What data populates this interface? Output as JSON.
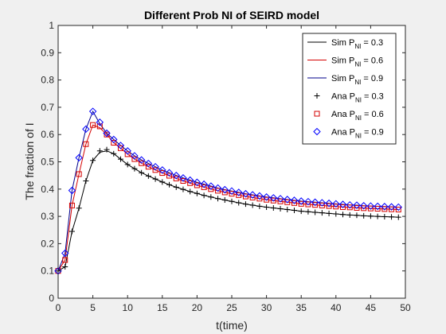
{
  "chart_data": {
    "type": "line",
    "title": "Different Prob NI of SEIRD model",
    "xlabel": "t(time)",
    "ylabel": "The fraction of I",
    "xlim": [
      0,
      50
    ],
    "ylim": [
      0,
      1
    ],
    "xticks": [
      "0",
      "5",
      "10",
      "15",
      "20",
      "25",
      "30",
      "35",
      "40",
      "45",
      "50"
    ],
    "yticks": [
      "0",
      "0.1",
      "0.2",
      "0.3",
      "0.4",
      "0.5",
      "0.6",
      "0.7",
      "0.8",
      "0.9",
      "1"
    ],
    "grid": false,
    "legend_position": "top-right",
    "series": [
      {
        "name": "Sim P_NI = 0.3",
        "legend_main": "Sim P",
        "legend_sub": "NI",
        "legend_tail": " = 0.3",
        "kind": "line",
        "color": "#000000",
        "x": [
          0,
          1,
          2,
          3,
          4,
          5,
          6,
          7,
          8,
          9,
          10,
          11,
          12,
          13,
          14,
          15,
          16,
          17,
          18,
          19,
          20,
          21,
          22,
          23,
          24,
          25,
          26,
          27,
          28,
          29,
          30,
          31,
          32,
          33,
          34,
          35,
          36,
          37,
          38,
          39,
          40,
          41,
          42,
          43,
          44,
          45,
          46,
          47,
          48,
          49
        ],
        "y": [
          0.1,
          0.115,
          0.245,
          0.33,
          0.43,
          0.505,
          0.535,
          0.54,
          0.53,
          0.51,
          0.49,
          0.475,
          0.46,
          0.448,
          0.437,
          0.426,
          0.416,
          0.407,
          0.399,
          0.391,
          0.384,
          0.377,
          0.371,
          0.365,
          0.36,
          0.355,
          0.35,
          0.345,
          0.341,
          0.337,
          0.334,
          0.331,
          0.328,
          0.325,
          0.322,
          0.319,
          0.317,
          0.315,
          0.313,
          0.311,
          0.309,
          0.307,
          0.305,
          0.304,
          0.302,
          0.301,
          0.3,
          0.299,
          0.298,
          0.297
        ]
      },
      {
        "name": "Sim P_NI = 0.6",
        "legend_main": "Sim P",
        "legend_sub": "NI",
        "legend_tail": " = 0.6",
        "kind": "line",
        "color": "#d40000",
        "x": [
          0,
          1,
          2,
          3,
          4,
          5,
          6,
          7,
          8,
          9,
          10,
          11,
          12,
          13,
          14,
          15,
          16,
          17,
          18,
          19,
          20,
          21,
          22,
          23,
          24,
          25,
          26,
          27,
          28,
          29,
          30,
          31,
          32,
          33,
          34,
          35,
          36,
          37,
          38,
          39,
          40,
          41,
          42,
          43,
          44,
          45,
          46,
          47,
          48,
          49
        ],
        "y": [
          0.1,
          0.14,
          0.34,
          0.455,
          0.565,
          0.635,
          0.625,
          0.6,
          0.57,
          0.55,
          0.528,
          0.51,
          0.495,
          0.482,
          0.47,
          0.459,
          0.449,
          0.439,
          0.43,
          0.422,
          0.414,
          0.407,
          0.4,
          0.394,
          0.388,
          0.383,
          0.378,
          0.373,
          0.369,
          0.365,
          0.361,
          0.358,
          0.355,
          0.352,
          0.349,
          0.346,
          0.344,
          0.342,
          0.34,
          0.338,
          0.336,
          0.334,
          0.333,
          0.331,
          0.33,
          0.329,
          0.328,
          0.327,
          0.326,
          0.325
        ]
      },
      {
        "name": "Sim P_NI = 0.9",
        "legend_main": "Sim P",
        "legend_sub": "NI",
        "legend_tail": " = 0.9",
        "kind": "line",
        "color": "#00008b",
        "x": [
          0,
          1,
          2,
          3,
          4,
          5,
          6,
          7,
          8,
          9,
          10,
          11,
          12,
          13,
          14,
          15,
          16,
          17,
          18,
          19,
          20,
          21,
          22,
          23,
          24,
          25,
          26,
          27,
          28,
          29,
          30,
          31,
          32,
          33,
          34,
          35,
          36,
          37,
          38,
          39,
          40,
          41,
          42,
          43,
          44,
          45,
          46,
          47,
          48,
          49
        ],
        "y": [
          0.1,
          0.165,
          0.395,
          0.515,
          0.62,
          0.685,
          0.64,
          0.605,
          0.582,
          0.56,
          0.54,
          0.522,
          0.507,
          0.494,
          0.482,
          0.47,
          0.46,
          0.45,
          0.441,
          0.433,
          0.425,
          0.418,
          0.411,
          0.404,
          0.398,
          0.393,
          0.388,
          0.383,
          0.379,
          0.375,
          0.371,
          0.368,
          0.365,
          0.362,
          0.359,
          0.356,
          0.354,
          0.352,
          0.35,
          0.348,
          0.346,
          0.344,
          0.342,
          0.341,
          0.339,
          0.338,
          0.337,
          0.336,
          0.335,
          0.334
        ]
      },
      {
        "name": "Ana P_NI = 0.3",
        "legend_main": "Ana P",
        "legend_sub": "NI",
        "legend_tail": " = 0.3",
        "kind": "marker",
        "marker": "plus",
        "color": "#000000",
        "x": [
          0,
          1,
          2,
          3,
          4,
          5,
          6,
          7,
          8,
          9,
          10,
          11,
          12,
          13,
          14,
          15,
          16,
          17,
          18,
          19,
          20,
          21,
          22,
          23,
          24,
          25,
          26,
          27,
          28,
          29,
          30,
          31,
          32,
          33,
          34,
          35,
          36,
          37,
          38,
          39,
          40,
          41,
          42,
          43,
          44,
          45,
          46,
          47,
          48,
          49
        ],
        "y": [
          0.1,
          0.115,
          0.245,
          0.33,
          0.43,
          0.505,
          0.54,
          0.545,
          0.53,
          0.51,
          0.49,
          0.475,
          0.46,
          0.448,
          0.437,
          0.426,
          0.416,
          0.407,
          0.399,
          0.391,
          0.384,
          0.377,
          0.371,
          0.365,
          0.36,
          0.355,
          0.35,
          0.345,
          0.341,
          0.337,
          0.334,
          0.331,
          0.328,
          0.325,
          0.322,
          0.319,
          0.317,
          0.315,
          0.313,
          0.311,
          0.309,
          0.307,
          0.305,
          0.304,
          0.302,
          0.301,
          0.3,
          0.299,
          0.298,
          0.297
        ]
      },
      {
        "name": "Ana P_NI = 0.6",
        "legend_main": "Ana P",
        "legend_sub": "NI",
        "legend_tail": " = 0.6",
        "kind": "marker",
        "marker": "square",
        "color": "#d40000",
        "x": [
          0,
          1,
          2,
          3,
          4,
          5,
          6,
          7,
          8,
          9,
          10,
          11,
          12,
          13,
          14,
          15,
          16,
          17,
          18,
          19,
          20,
          21,
          22,
          23,
          24,
          25,
          26,
          27,
          28,
          29,
          30,
          31,
          32,
          33,
          34,
          35,
          36,
          37,
          38,
          39,
          40,
          41,
          42,
          43,
          44,
          45,
          46,
          47,
          48,
          49
        ],
        "y": [
          0.1,
          0.14,
          0.34,
          0.455,
          0.565,
          0.635,
          0.63,
          0.6,
          0.57,
          0.55,
          0.528,
          0.51,
          0.495,
          0.482,
          0.47,
          0.459,
          0.449,
          0.439,
          0.43,
          0.422,
          0.414,
          0.407,
          0.4,
          0.394,
          0.388,
          0.383,
          0.378,
          0.373,
          0.369,
          0.365,
          0.361,
          0.358,
          0.355,
          0.352,
          0.349,
          0.346,
          0.344,
          0.342,
          0.34,
          0.338,
          0.336,
          0.334,
          0.333,
          0.331,
          0.33,
          0.329,
          0.328,
          0.327,
          0.326,
          0.325
        ]
      },
      {
        "name": "Ana P_NI = 0.9",
        "legend_main": "Ana P",
        "legend_sub": "NI",
        "legend_tail": " = 0.9",
        "kind": "marker",
        "marker": "diamond",
        "color": "#0000ff",
        "x": [
          0,
          1,
          2,
          3,
          4,
          5,
          6,
          7,
          8,
          9,
          10,
          11,
          12,
          13,
          14,
          15,
          16,
          17,
          18,
          19,
          20,
          21,
          22,
          23,
          24,
          25,
          26,
          27,
          28,
          29,
          30,
          31,
          32,
          33,
          34,
          35,
          36,
          37,
          38,
          39,
          40,
          41,
          42,
          43,
          44,
          45,
          46,
          47,
          48,
          49
        ],
        "y": [
          0.1,
          0.165,
          0.395,
          0.515,
          0.62,
          0.685,
          0.645,
          0.605,
          0.582,
          0.56,
          0.54,
          0.522,
          0.507,
          0.494,
          0.482,
          0.47,
          0.46,
          0.45,
          0.441,
          0.433,
          0.425,
          0.418,
          0.411,
          0.404,
          0.398,
          0.393,
          0.388,
          0.383,
          0.379,
          0.375,
          0.371,
          0.368,
          0.365,
          0.362,
          0.359,
          0.356,
          0.354,
          0.352,
          0.35,
          0.348,
          0.346,
          0.344,
          0.342,
          0.341,
          0.339,
          0.338,
          0.337,
          0.336,
          0.335,
          0.334
        ]
      }
    ]
  }
}
